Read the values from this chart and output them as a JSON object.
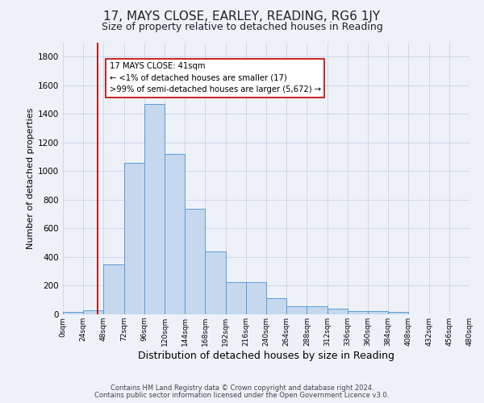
{
  "title": "17, MAYS CLOSE, EARLEY, READING, RG6 1JY",
  "subtitle": "Size of property relative to detached houses in Reading",
  "xlabel": "Distribution of detached houses by size in Reading",
  "ylabel": "Number of detached properties",
  "bar_values": [
    15,
    30,
    350,
    1060,
    1470,
    1120,
    740,
    440,
    225,
    225,
    110,
    55,
    55,
    40,
    20,
    20,
    15
  ],
  "bin_edges": [
    0,
    24,
    48,
    72,
    96,
    120,
    144,
    168,
    192,
    216,
    240,
    264,
    288,
    312,
    336,
    360,
    384,
    408
  ],
  "tick_labels": [
    "0sqm",
    "24sqm",
    "48sqm",
    "72sqm",
    "96sqm",
    "120sqm",
    "144sqm",
    "168sqm",
    "192sqm",
    "216sqm",
    "240sqm",
    "264sqm",
    "288sqm",
    "312sqm",
    "336sqm",
    "360sqm",
    "384sqm",
    "408sqm",
    "432sqm",
    "456sqm",
    "480sqm"
  ],
  "all_ticks": [
    0,
    24,
    48,
    72,
    96,
    120,
    144,
    168,
    192,
    216,
    240,
    264,
    288,
    312,
    336,
    360,
    384,
    408,
    432,
    456,
    480
  ],
  "bar_color": "#c5d8ed",
  "bar_edge_color": "#5b9bd5",
  "vline_x": 41,
  "vline_color": "#cc0000",
  "annotation_line1": "17 MAYS CLOSE: 41sqm",
  "annotation_line2": "← <1% of detached houses are smaller (17)",
  "annotation_line3": ">99% of semi-detached houses are larger (5,672) →",
  "ylim": [
    0,
    1900
  ],
  "yticks": [
    0,
    200,
    400,
    600,
    800,
    1000,
    1200,
    1400,
    1600,
    1800
  ],
  "footer_line1": "Contains HM Land Registry data © Crown copyright and database right 2024.",
  "footer_line2": "Contains public sector information licensed under the Open Government Licence v3.0.",
  "bg_color": "#eef2f8",
  "plot_bg_color": "#eef2f8",
  "grid_color": "#c8d4e8",
  "title_fontsize": 11,
  "subtitle_fontsize": 9,
  "ylabel_fontsize": 8,
  "xlabel_fontsize": 9
}
